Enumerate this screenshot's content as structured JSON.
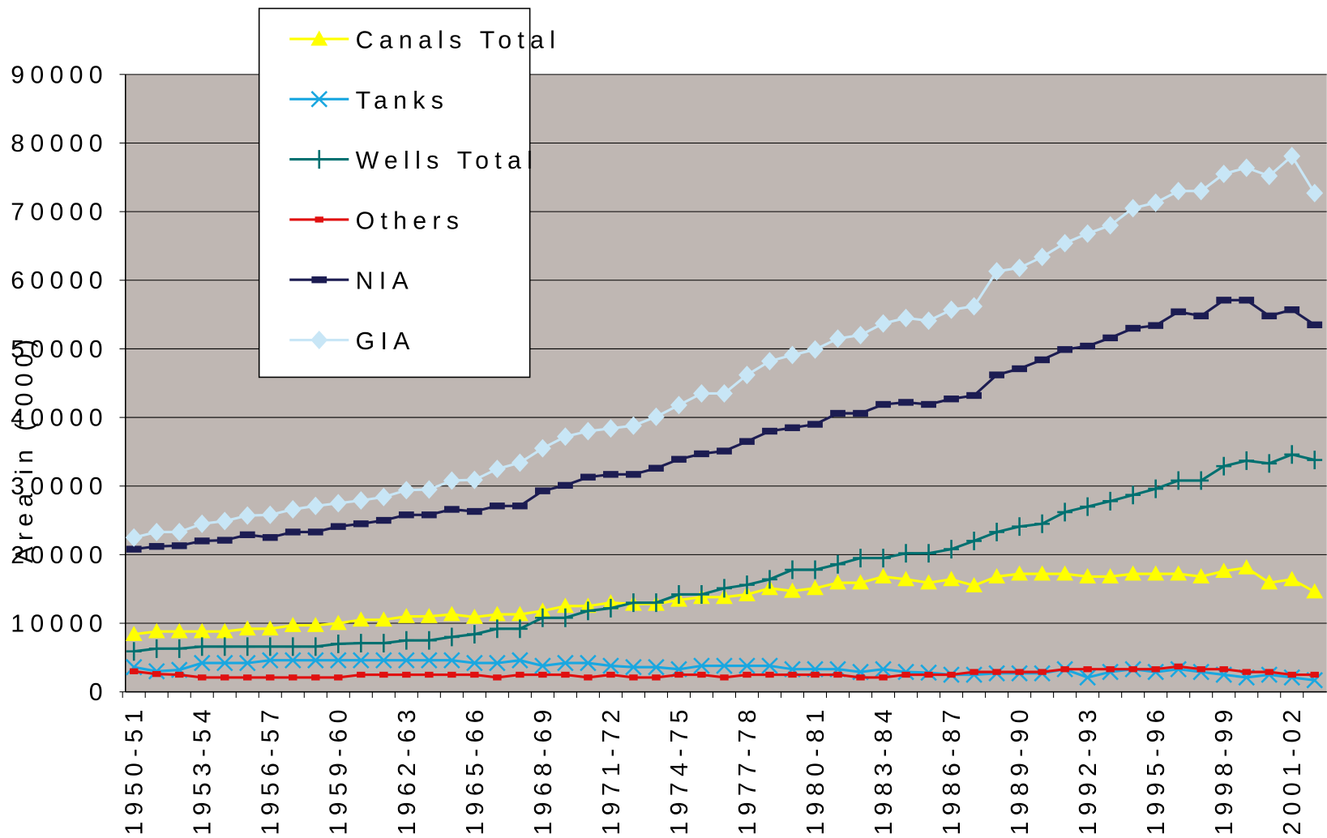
{
  "chart_data": {
    "type": "line",
    "y_label": "Area in ('000)",
    "categories": [
      "1950-51",
      null,
      null,
      "1953-54",
      null,
      null,
      "1956-57",
      null,
      null,
      "1959-60",
      null,
      null,
      "1962-63",
      null,
      null,
      "1965-66",
      null,
      null,
      "1968-69",
      null,
      null,
      "1971-72",
      null,
      null,
      "1974-75",
      null,
      null,
      "1977-78",
      null,
      null,
      "1980-81",
      null,
      null,
      "1983-84",
      null,
      null,
      "1986-87",
      null,
      null,
      "1989-90",
      null,
      null,
      "1992-93",
      null,
      null,
      "1995-96",
      null,
      null,
      "1998-99",
      null,
      null,
      "2001-02",
      null
    ],
    "ylim": [
      0,
      90000
    ],
    "yticks": [
      0,
      10000,
      20000,
      30000,
      40000,
      50000,
      60000,
      70000,
      80000,
      90000
    ],
    "grid": true,
    "legend": "top-left",
    "series": [
      {
        "name": "Canals Total",
        "color": "#ffff00",
        "marker": "triangle",
        "values": [
          8400,
          8800,
          8800,
          8800,
          8800,
          9200,
          9200,
          9700,
          9700,
          10000,
          10500,
          10500,
          11000,
          11000,
          11300,
          10900,
          11300,
          11300,
          11800,
          12500,
          12500,
          13000,
          12800,
          12800,
          13400,
          13800,
          13800,
          14200,
          15100,
          14700,
          15100,
          15900,
          15900,
          16800,
          16400,
          15900,
          16400,
          15500,
          16800,
          17200,
          17200,
          17200,
          16800,
          16800,
          17200,
          17200,
          17200,
          16800,
          17600,
          18100,
          15900,
          16400,
          14600
        ]
      },
      {
        "name": "Tanks",
        "color": "#1aa7e0",
        "marker": "x",
        "values": [
          3600,
          3000,
          3200,
          4200,
          4200,
          4200,
          4600,
          4600,
          4600,
          4600,
          4600,
          4600,
          4600,
          4600,
          4600,
          4200,
          4200,
          4600,
          3800,
          4200,
          4200,
          3800,
          3600,
          3600,
          3300,
          3800,
          3800,
          3800,
          3800,
          3300,
          3300,
          3300,
          2900,
          3300,
          2900,
          2800,
          2500,
          2500,
          2700,
          2700,
          2700,
          3300,
          2100,
          2900,
          3300,
          2900,
          3300,
          2900,
          2500,
          2100,
          2500,
          2100,
          1700
        ]
      },
      {
        "name": "Wells Total",
        "color": "#007070",
        "marker": "plus",
        "values": [
          5900,
          6300,
          6300,
          6600,
          6600,
          6600,
          6600,
          6600,
          6600,
          7000,
          7100,
          7100,
          7500,
          7500,
          8000,
          8400,
          9200,
          9200,
          10800,
          10800,
          11800,
          12200,
          13000,
          13000,
          14200,
          14200,
          15100,
          15600,
          16400,
          17800,
          17800,
          18600,
          19500,
          19500,
          20200,
          20200,
          20800,
          22000,
          23300,
          24100,
          24500,
          26200,
          27000,
          27800,
          28700,
          29600,
          30800,
          30800,
          32900,
          33700,
          33300,
          34600,
          33800
        ]
      },
      {
        "name": "Others",
        "color": "#e01010",
        "marker": "small-square",
        "values": [
          3000,
          2600,
          2500,
          2100,
          2100,
          2100,
          2100,
          2100,
          2100,
          2100,
          2500,
          2500,
          2500,
          2500,
          2500,
          2500,
          2100,
          2500,
          2500,
          2500,
          2100,
          2500,
          2100,
          2100,
          2500,
          2500,
          2100,
          2500,
          2500,
          2500,
          2500,
          2500,
          2100,
          2100,
          2500,
          2500,
          2500,
          2900,
          2900,
          2900,
          2900,
          3300,
          3300,
          3300,
          3300,
          3300,
          3700,
          3300,
          3300,
          2900,
          2900,
          2500,
          2500
        ]
      },
      {
        "name": "NIA",
        "color": "#1c1c52",
        "marker": "dash",
        "values": [
          20800,
          21200,
          21300,
          22000,
          22100,
          22900,
          22500,
          23300,
          23300,
          24100,
          24500,
          25000,
          25800,
          25800,
          26600,
          26300,
          27100,
          27100,
          29300,
          30100,
          31300,
          31700,
          31700,
          32600,
          33900,
          34700,
          35100,
          36500,
          38000,
          38500,
          39000,
          40600,
          40600,
          41900,
          42200,
          41900,
          42700,
          43200,
          46200,
          47100,
          48400,
          49900,
          50400,
          51600,
          53000,
          53400,
          55400,
          54800,
          57100,
          57100,
          54800,
          55700,
          53500
        ]
      },
      {
        "name": "GIA",
        "color": "#c8e6f6",
        "marker": "diamond",
        "values": [
          22500,
          23300,
          23300,
          24500,
          24900,
          25700,
          25800,
          26600,
          27100,
          27500,
          27900,
          28400,
          29400,
          29500,
          30800,
          30900,
          32500,
          33400,
          35500,
          37200,
          38000,
          38400,
          38800,
          40100,
          41800,
          43500,
          43500,
          46200,
          48200,
          49100,
          49900,
          51500,
          52000,
          53700,
          54500,
          54100,
          55700,
          56200,
          61300,
          61800,
          63400,
          65400,
          66800,
          68000,
          70500,
          71300,
          73000,
          73000,
          75500,
          76400,
          75200,
          78100,
          72700
        ]
      }
    ]
  }
}
